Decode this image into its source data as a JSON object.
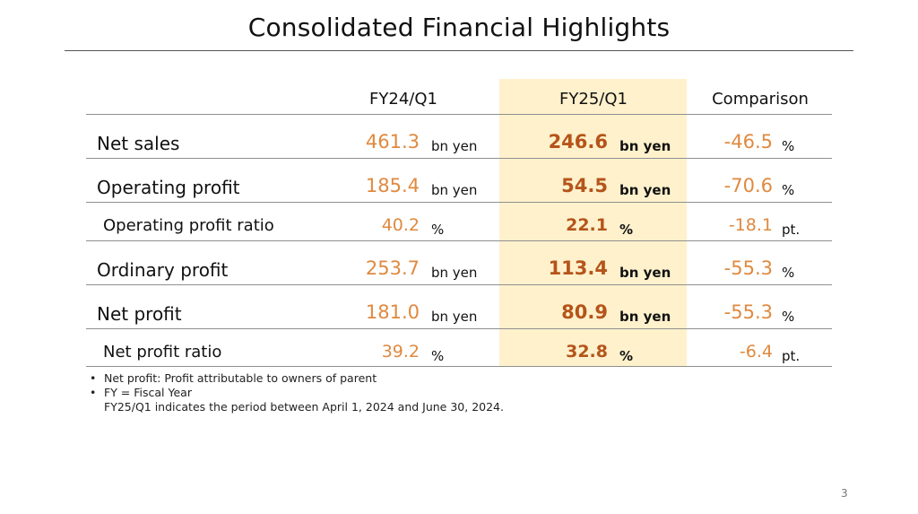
{
  "title": "Consolidated Financial Highlights",
  "header": {
    "col_prev": "FY24/Q1",
    "col_curr": "FY25/Q1",
    "col_cmp": "Comparison"
  },
  "rows": [
    {
      "label": "Net sales",
      "prev": "461.3",
      "prev_unit": "bn yen",
      "curr": "246.6",
      "curr_unit": "bn yen",
      "cmp": "-46.5",
      "cmp_unit": "%"
    },
    {
      "label": "Operating profit",
      "prev": "185.4",
      "prev_unit": "bn yen",
      "curr": "54.5",
      "curr_unit": "bn yen",
      "cmp": "-70.6",
      "cmp_unit": "%"
    },
    {
      "label": "Operating profit ratio",
      "prev": "40.2",
      "prev_unit": "%",
      "curr": "22.1",
      "curr_unit": "%",
      "cmp": "-18.1",
      "cmp_unit": "pt."
    },
    {
      "label": "Ordinary profit",
      "prev": "253.7",
      "prev_unit": "bn yen",
      "curr": "113.4",
      "curr_unit": "bn yen",
      "cmp": "-55.3",
      "cmp_unit": "%"
    },
    {
      "label": "Net profit",
      "prev": "181.0",
      "prev_unit": "bn yen",
      "curr": "80.9",
      "curr_unit": "bn yen",
      "cmp": "-55.3",
      "cmp_unit": "%"
    },
    {
      "label": "Net profit ratio",
      "prev": "39.2",
      "prev_unit": "%",
      "curr": "32.8",
      "curr_unit": "%",
      "cmp": "-6.4",
      "cmp_unit": "pt."
    }
  ],
  "notes": [
    "Net profit: Profit attributable to owners of parent",
    "FY = Fiscal Year",
    "FY25/Q1 indicates the period between April 1, 2024 and June 30, 2024."
  ],
  "bullet": "•",
  "page_number": "3",
  "colors": {
    "highlight": "#fef1cc",
    "value_orange": "#e0893f",
    "value_bold": "#b5541a"
  }
}
